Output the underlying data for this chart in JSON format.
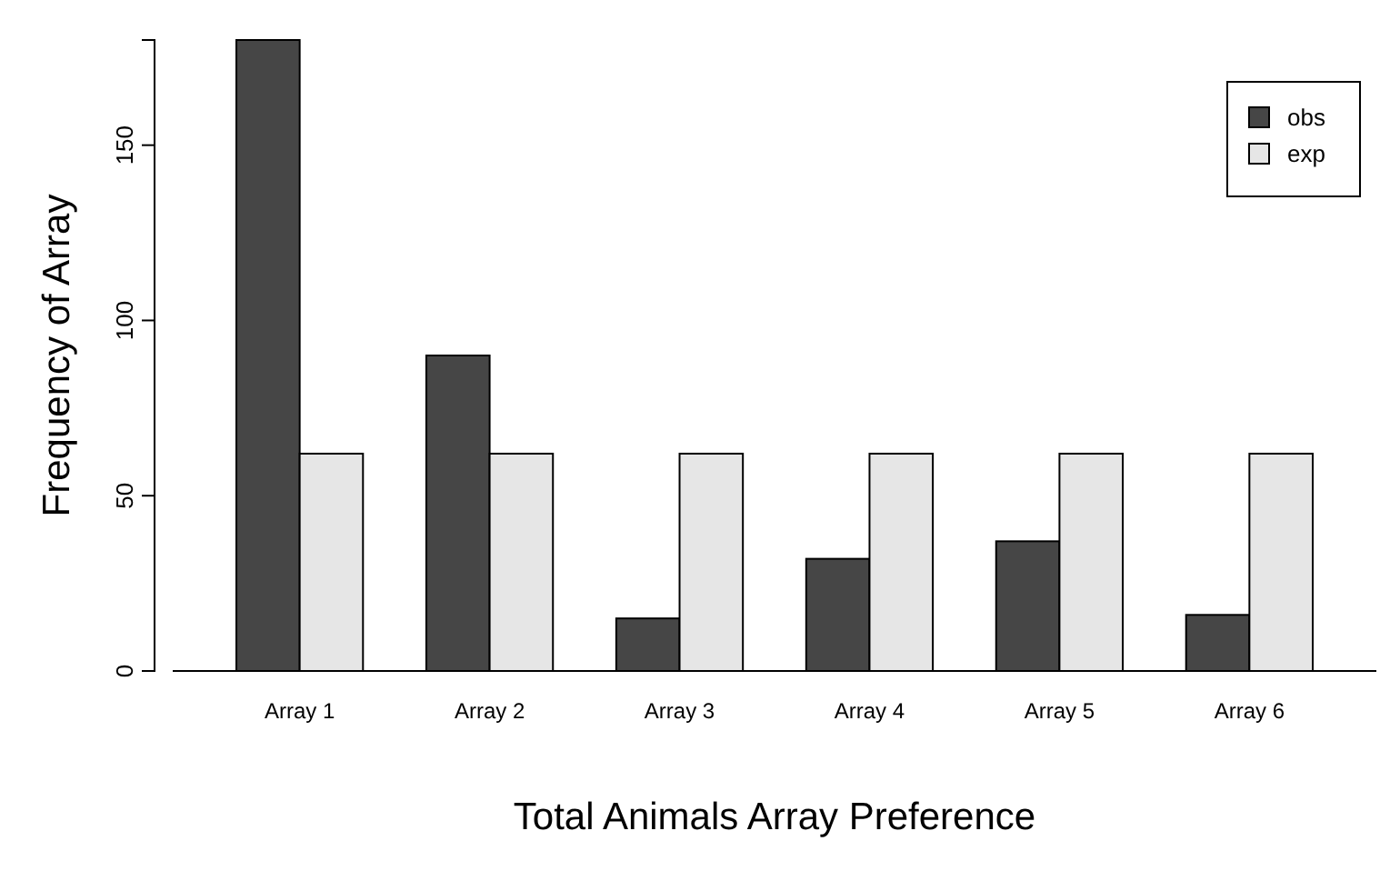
{
  "chart_data": {
    "type": "bar",
    "xlabel": "Total Animals Array Preference",
    "ylabel": "Frequency of Array",
    "categories": [
      "Array 1",
      "Array 2",
      "Array 3",
      "Array 4",
      "Array 5",
      "Array 6"
    ],
    "series": [
      {
        "name": "obs",
        "color": "#464646",
        "values": [
          180,
          90,
          15,
          32,
          37,
          16
        ]
      },
      {
        "name": "exp",
        "color": "#e6e6e6",
        "values": [
          62,
          62,
          62,
          62,
          62,
          62
        ]
      }
    ],
    "ylim": [
      0,
      180
    ],
    "yticks": [
      0,
      50,
      100,
      150
    ],
    "grid": false,
    "legend": "top right"
  }
}
